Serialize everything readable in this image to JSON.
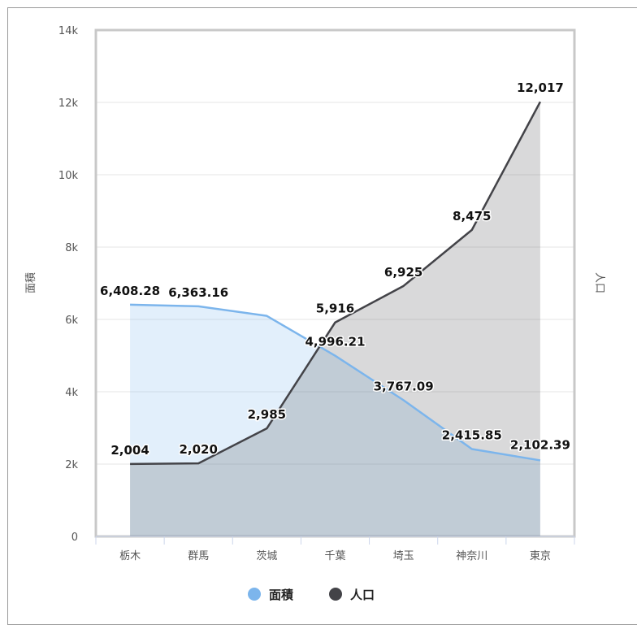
{
  "chart_data": {
    "type": "area",
    "categories": [
      "栃木",
      "群馬",
      "茨城",
      "千葉",
      "埼玉",
      "神奈川",
      "東京"
    ],
    "y_ticks": [
      "0",
      "2k",
      "4k",
      "6k",
      "8k",
      "10k",
      "12k",
      "14k"
    ],
    "ylim": [
      0,
      14000
    ],
    "ylabel_left": "面積",
    "ylabel_right": "人口",
    "grid": true,
    "legend_position": "bottom-center",
    "series": [
      {
        "name": "面積",
        "color": "#7cb5ec",
        "values": [
          6408.28,
          6363.16,
          6097.39,
          4996.21,
          3767.09,
          2415.85,
          2102.39
        ],
        "labels": [
          "6,408.28",
          "6,363.16",
          "",
          "4,996.21",
          "3,767.09",
          "2,415.85",
          "2,102.39"
        ]
      },
      {
        "name": "人口",
        "color": "#434348",
        "values": [
          2004,
          2020,
          2985,
          5916,
          6925,
          8475,
          12017
        ],
        "labels": [
          "2,004",
          "2,020",
          "2,985",
          "5,916",
          "6,925",
          "8,475",
          "12,017"
        ]
      }
    ]
  }
}
